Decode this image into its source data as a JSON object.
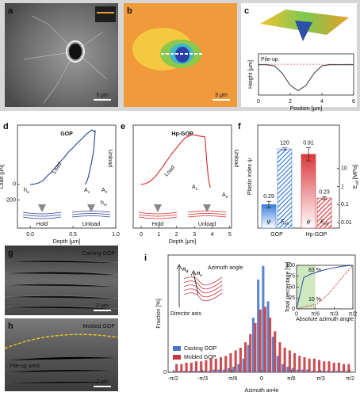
{
  "images": [
    {
      "label": "a",
      "scale_bar": "3 μm"
    },
    {
      "label": "b",
      "scale_bar": "3 μm"
    },
    {
      "label": "g",
      "caption": "Casting GOP",
      "scale_bar": "2 μm"
    },
    {
      "label": "h",
      "caption": "Molded GOP",
      "note": "Pile-up area",
      "scale_bar": "2 μm"
    }
  ],
  "chart_data": [
    {
      "type": "line",
      "panel": "c",
      "xlabel": "Position [μm]",
      "ylabel": "Height [μm]",
      "annotation": "Pile-up",
      "x": [
        0,
        0.5,
        1,
        1.5,
        2,
        2.5,
        3,
        3.5,
        4,
        4.5,
        5,
        5.5,
        6
      ],
      "values": [
        0.1,
        0.1,
        0.05,
        -0.3,
        -0.85,
        -1.1,
        -0.85,
        -0.3,
        0.05,
        0.1,
        0.1,
        0.1,
        0.1
      ],
      "color": "#444444",
      "pileup_level": 0.12,
      "pileup_color": "#d9534f",
      "xlim": [
        0,
        6
      ],
      "xticks": [
        0,
        2,
        4,
        6
      ],
      "ylim": [
        -1.3,
        0.6
      ]
    },
    {
      "type": "indentation",
      "panel": "d",
      "title": "GOP",
      "xlabel": "Depth [μm]",
      "ylabel": "Load [μN]",
      "color": "#2b3f99",
      "series": [
        {
          "name": "Load",
          "x": [
            0,
            0.05,
            0.1,
            0.15,
            0.2,
            0.25,
            0.3,
            0.35,
            0.4,
            0.45,
            0.5,
            0.55,
            0.6,
            0.65,
            0.7
          ],
          "values": [
            0,
            5,
            20,
            50,
            110,
            160,
            230,
            290,
            350,
            420,
            470,
            530,
            580,
            640,
            680
          ]
        },
        {
          "x": [
            0.7,
            0.72,
            0.74,
            0.76
          ],
          "values": [
            680,
            700,
            680,
            690
          ]
        },
        {
          "name": "Unload",
          "x": [
            0.76,
            0.75,
            0.74,
            0.72,
            0.7,
            0.68,
            0.66,
            0.64
          ],
          "values": [
            690,
            550,
            420,
            300,
            200,
            100,
            30,
            0
          ]
        }
      ],
      "areas": [
        {
          "base": "A",
          "sub": "1"
        },
        {
          "base": "A",
          "sub": "2"
        }
      ],
      "depths": [
        {
          "base": "h",
          "sub": "e"
        },
        {
          "base": "h",
          "sub": "m"
        }
      ],
      "schematic_labels": [
        "Hold",
        "Unload"
      ],
      "xlim": [
        -0.15,
        1.0
      ],
      "xticks": [
        {
          "value": 0,
          "label": "0.0"
        },
        0.5,
        {
          "value": 1,
          "label": "1.0"
        }
      ],
      "ylim": [
        -560,
        760
      ],
      "yticks": [
        -200,
        0
      ]
    },
    {
      "type": "indentation",
      "panel": "e",
      "title": "Hp-GOP",
      "xlabel": "Depth [μm]",
      "color": "#d62728",
      "series": [
        {
          "name": "Load",
          "x": [
            0,
            0.25,
            0.5,
            0.75,
            1,
            1.25,
            1.5,
            1.75,
            2,
            2.25,
            2.5
          ],
          "values": [
            0,
            10,
            40,
            90,
            160,
            240,
            320,
            400,
            470,
            540,
            600
          ]
        },
        {
          "x": [
            2.5,
            2.9,
            3.3,
            3.6
          ],
          "values": [
            600,
            640,
            620,
            610
          ]
        },
        {
          "name": "Unload",
          "x": [
            3.6,
            3.7,
            3.8,
            3.9
          ],
          "values": [
            610,
            300,
            60,
            -40
          ]
        }
      ],
      "areas": [
        {
          "base": "A",
          "sub": "1"
        },
        {
          "base": "A",
          "sub": "2"
        }
      ],
      "schematic_labels": [
        "Hold",
        "Unload"
      ],
      "xlim": [
        -0.45,
        5.1
      ],
      "xticks": [
        0,
        1,
        2,
        3,
        4,
        5
      ],
      "ylim": [
        -560,
        760
      ],
      "yticks": []
    },
    {
      "type": "bar",
      "panel": "f",
      "ylabel": "Plastic index ψ",
      "y2label": {
        "base": "E",
        "sub": "eff",
        "rest": " [MPa]"
      },
      "categories": [
        "GOP",
        "Hp-GOP"
      ],
      "colors": [
        "#3b7dd8",
        "#d9373b"
      ],
      "series": [
        {
          "name": "ψ",
          "values": [
            0.29,
            0.91
          ],
          "errors": [
            0.04,
            0.08
          ]
        },
        {
          "name": {
            "base": "E",
            "sub": "eff"
          },
          "axis": "y2",
          "values": [
            120,
            0.23
          ],
          "errors": [
            18,
            0.04
          ]
        }
      ],
      "ylim": [
        0,
        1.27
      ],
      "y2lim": [
        0.005,
        2500
      ],
      "y2ticks": [
        0.01,
        0.1,
        1,
        10
      ],
      "y2log": true
    },
    {
      "type": "histogram",
      "panel": "i",
      "xlabel": "Azimuth an•le",
      "ylabel": "Fraction [%]",
      "bins": [
        -1.5708,
        -1.4835,
        -1.3963,
        -1.309,
        -1.2217,
        -1.1345,
        -1.0472,
        -0.9599,
        -0.8727,
        -0.7854,
        -0.6981,
        -0.6109,
        -0.5236,
        -0.4363,
        -0.3491,
        -0.2618,
        -0.1745,
        -0.0873,
        0,
        0.0873,
        0.1745,
        0.2618,
        0.3491,
        0.4363,
        0.5236,
        0.6109,
        0.6981,
        0.7854,
        0.8727,
        0.9599,
        1.0472,
        1.1345,
        1.2217,
        1.309,
        1.3963,
        1.4835,
        1.5708
      ],
      "series": [
        {
          "name": "Casting GOP",
          "color": "#4a78c8",
          "values": [
            0.05,
            0.05,
            0.05,
            0.05,
            0.05,
            0.05,
            0.05,
            0.05,
            0.1,
            0.1,
            0.1,
            0.15,
            0.2,
            0.3,
            0.5,
            1.0,
            2.0,
            3.4,
            3.9,
            2.6,
            1.3,
            0.6,
            0.3,
            0.2,
            0.15,
            0.1,
            0.1,
            0.1,
            0.05,
            0.05,
            0.05,
            0.05,
            0.05,
            0.05,
            0.05,
            0.05
          ]
        },
        {
          "name": "Molded GOP",
          "color": "#c63a3f",
          "values": [
            0.3,
            0.3,
            0.35,
            0.35,
            0.4,
            0.4,
            0.45,
            0.5,
            0.5,
            0.55,
            0.6,
            0.7,
            0.8,
            0.9,
            1.1,
            1.4,
            1.8,
            2.3,
            2.4,
            2.0,
            1.5,
            1.1,
            0.9,
            0.8,
            0.7,
            0.6,
            0.55,
            0.5,
            0.5,
            0.45,
            0.4,
            0.4,
            0.35,
            0.35,
            0.3,
            0.3
          ]
        }
      ],
      "legend": "left",
      "schematic": {
        "n_d": {
          "base": "n",
          "sub": "d"
        },
        "n_c": {
          "base": "n",
          "sub": "c"
        },
        "azimuth": "Azimuth angle",
        "director": "Director axis"
      },
      "xlim": [
        -1.66,
        1.66
      ],
      "xticks": [
        {
          "value": -1.5708,
          "label": "-π/2"
        },
        {
          "value": -1.0472,
          "label": "-π/3"
        },
        {
          "value": -0.5236,
          "label": "-π/6"
        },
        0,
        {
          "value": 0.5236,
          "label": "π/6"
        },
        {
          "value": 1.0472,
          "label": "π/3"
        },
        {
          "value": 1.5708,
          "label": "π/2"
        }
      ],
      "ylim": [
        0,
        4.3
      ],
      "yticks": [
        0
      ]
    },
    {
      "type": "line",
      "panel": "i-inset",
      "xlabel": "Absolute azimuth angle",
      "ylabel": "Total percentage [%]",
      "annotations": [
        "83 %",
        "10 %"
      ],
      "x": [
        0,
        0.2,
        0.4,
        0.5236,
        0.7,
        0.9,
        1.1,
        1.3,
        1.5708
      ],
      "series": [
        {
          "color": "#2b4fb0",
          "values": [
            0,
            72,
            80,
            83,
            88,
            92,
            95,
            98,
            100
          ]
        },
        {
          "color": "#c0262d",
          "values": [
            0,
            4,
            8,
            10,
            20,
            35,
            55,
            75,
            100
          ]
        }
      ],
      "highlight_x": [
        0,
        0.5236
      ],
      "xlim": [
        0,
        1.5708
      ],
      "xticks": [
        0,
        {
          "value": 0.5236,
          "label": "π/6"
        },
        {
          "value": 1.0472,
          "label": "π/3"
        },
        {
          "value": 1.5708,
          "label": "π/2"
        }
      ],
      "ylim": [
        0,
        100
      ],
      "yticks": [
        0,
        25,
        50,
        75,
        100
      ]
    }
  ]
}
